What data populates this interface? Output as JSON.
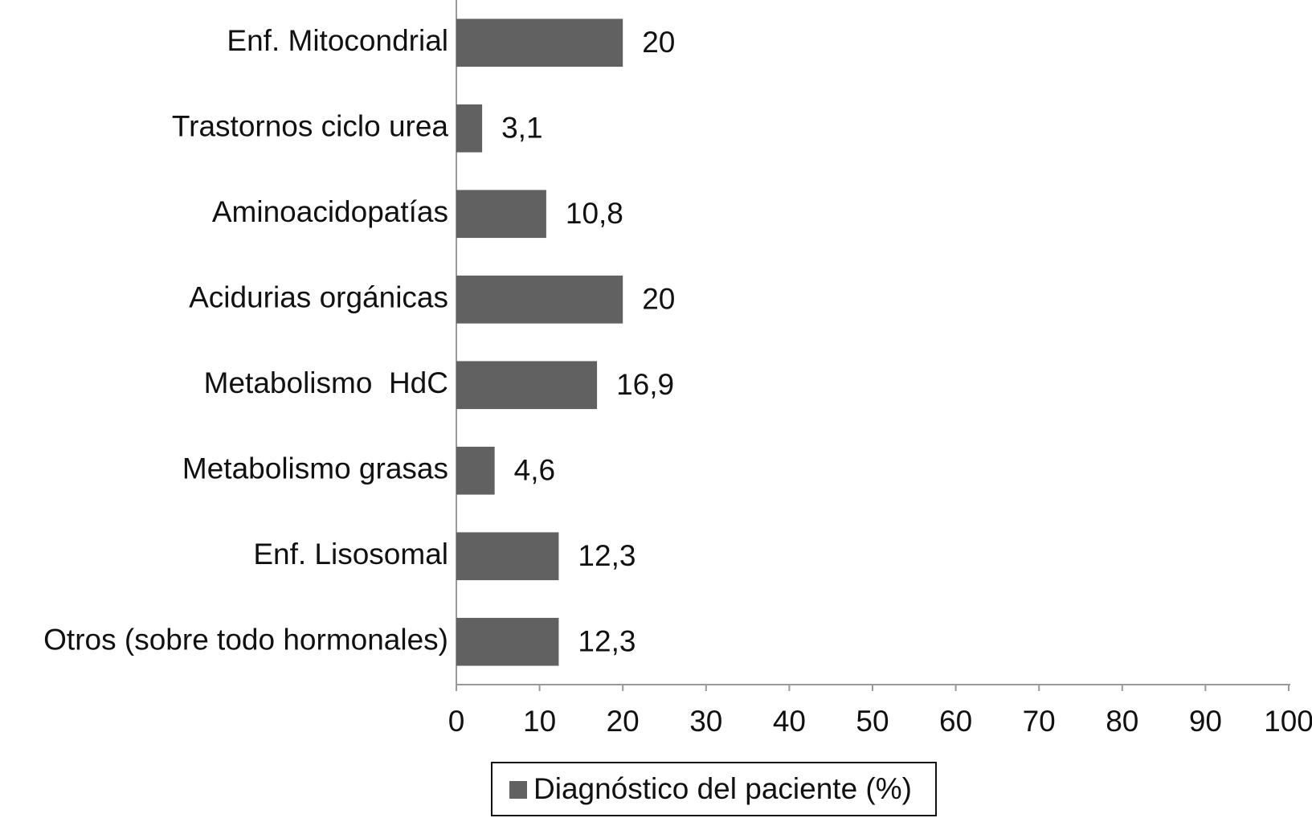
{
  "chart_data": {
    "type": "bar",
    "orientation": "horizontal",
    "categories": [
      "Enf. Mitocondrial",
      "Trastornos ciclo urea",
      "Aminoacidopatías",
      "Acidurias orgánicas",
      "Metabolismo  HdC",
      "Metabolismo grasas",
      "Enf. Lisosomal",
      "Otros (sobre todo hormonales)"
    ],
    "series": [
      {
        "name": "Diagnóstico del paciente (%)",
        "color": "#616161",
        "values": [
          20,
          3.1,
          10.8,
          20,
          16.9,
          4.6,
          12.3,
          12.3
        ],
        "value_labels": [
          "20",
          "3,1",
          "10,8",
          "20",
          "16,9",
          "4,6",
          "12,3",
          "12,3"
        ]
      }
    ],
    "xlim": [
      0,
      100
    ],
    "xticks": [
      0,
      10,
      20,
      30,
      40,
      50,
      60,
      70,
      80,
      90,
      100
    ],
    "legend": "bottom"
  }
}
